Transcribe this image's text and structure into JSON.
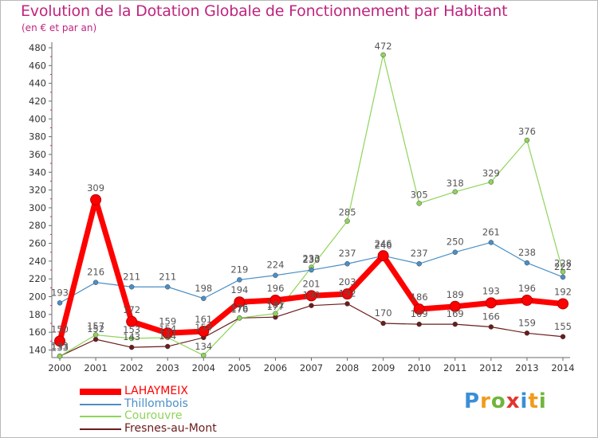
{
  "title": "Evolution de la Dotation Globale de Fonctionnement par Habitant",
  "subtitle": "(en € et par an)",
  "logo_text": "Proxiti",
  "chart_data": {
    "type": "line",
    "x": [
      2000,
      2001,
      2002,
      2003,
      2004,
      2005,
      2006,
      2007,
      2008,
      2009,
      2010,
      2011,
      2012,
      2013,
      2014
    ],
    "ylim": [
      130,
      480
    ],
    "yticks": [
      140,
      160,
      180,
      200,
      220,
      240,
      260,
      280,
      300,
      320,
      340,
      360,
      380,
      400,
      420,
      440,
      460,
      480
    ],
    "grid": false,
    "legend_position": "bottom-left",
    "series": [
      {
        "name": "LAHAYMEIX",
        "color": "#ff0000",
        "emphasis": true,
        "values": [
          150,
          309,
          172,
          159,
          161,
          194,
          196,
          201,
          203,
          246,
          186,
          189,
          193,
          196,
          192
        ]
      },
      {
        "name": "Thillombois",
        "color": "#4a8fc6",
        "values": [
          193,
          216,
          211,
          211,
          198,
          219,
          224,
          230,
          237,
          246,
          237,
          250,
          261,
          238,
          222
        ]
      },
      {
        "name": "Courouvre",
        "color": "#8fd45a",
        "values": [
          133,
          157,
          153,
          154,
          134,
          176,
          181,
          233,
          285,
          472,
          305,
          318,
          329,
          376,
          228
        ]
      },
      {
        "name": "Fresnes-au-Mont",
        "color": "#6b1c1c",
        "values": [
          133,
          152,
          143,
          144,
          154,
          176,
          177,
          190,
          192,
          170,
          169,
          169,
          166,
          159,
          155
        ]
      }
    ]
  }
}
